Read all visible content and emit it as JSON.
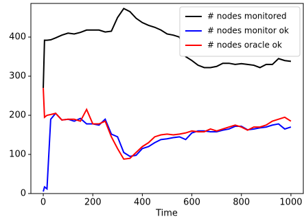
{
  "chart_data": {
    "type": "line",
    "xlabel": "Time",
    "x": [
      0,
      5,
      15,
      30,
      50,
      75,
      100,
      125,
      150,
      175,
      200,
      225,
      250,
      275,
      300,
      325,
      350,
      375,
      400,
      425,
      450,
      475,
      500,
      525,
      550,
      575,
      600,
      625,
      650,
      675,
      700,
      725,
      750,
      775,
      800,
      825,
      850,
      875,
      900,
      925,
      950,
      975,
      1000
    ],
    "series": [
      {
        "name": "# nodes monitored",
        "color": "#000000",
        "values": [
          270,
          392,
          392,
          393,
          398,
          405,
          410,
          408,
          412,
          418,
          418,
          418,
          413,
          415,
          450,
          473,
          465,
          448,
          437,
          430,
          425,
          418,
          408,
          405,
          400,
          350,
          340,
          328,
          322,
          322,
          325,
          333,
          333,
          330,
          332,
          330,
          328,
          322,
          330,
          330,
          345,
          340,
          338
        ]
      },
      {
        "name": "# nodes monitor ok",
        "color": "#0000ff",
        "values": [
          5,
          17,
          12,
          190,
          205,
          188,
          190,
          185,
          192,
          178,
          178,
          175,
          190,
          152,
          145,
          105,
          95,
          98,
          115,
          120,
          130,
          138,
          140,
          143,
          145,
          138,
          155,
          160,
          160,
          158,
          158,
          162,
          165,
          172,
          172,
          163,
          165,
          168,
          170,
          175,
          178,
          165,
          170
        ]
      },
      {
        "name": "# nodes oracle ok",
        "color": "#ff0000",
        "values": [
          270,
          195,
          200,
          202,
          205,
          188,
          190,
          190,
          185,
          215,
          178,
          178,
          185,
          145,
          115,
          88,
          90,
          105,
          120,
          130,
          145,
          150,
          152,
          150,
          152,
          155,
          160,
          158,
          158,
          165,
          160,
          165,
          170,
          175,
          170,
          162,
          170,
          170,
          175,
          185,
          190,
          195,
          185
        ]
      }
    ],
    "xlim": [
      -50,
      1050
    ],
    "ylim": [
      0,
      486
    ],
    "xticks": [
      0,
      200,
      400,
      600,
      800,
      1000
    ],
    "yticks": [
      0,
      100,
      200,
      300,
      400
    ],
    "legend": "upper right"
  }
}
